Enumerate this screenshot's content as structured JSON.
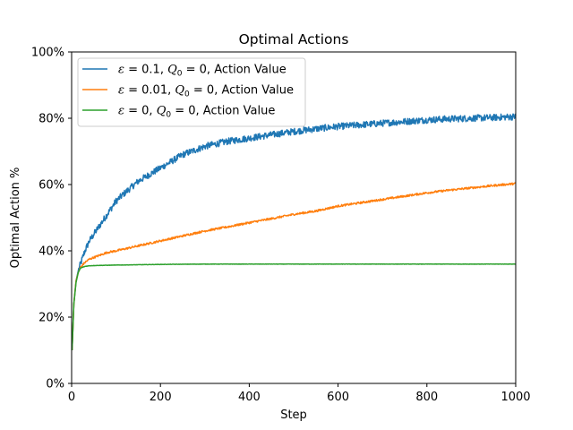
{
  "chart_data": {
    "type": "line",
    "title": "Optimal Actions",
    "xlabel": "Step",
    "ylabel": "Optimal Action %",
    "xlim": [
      0,
      1000
    ],
    "ylim": [
      0,
      100
    ],
    "x_ticks": [
      0,
      200,
      400,
      600,
      800,
      1000
    ],
    "y_ticks": [
      0,
      20,
      40,
      60,
      80,
      100
    ],
    "x_tick_labels": [
      "0",
      "200",
      "400",
      "600",
      "800",
      "1000"
    ],
    "y_tick_labels": [
      "0%",
      "20%",
      "40%",
      "60%",
      "80%",
      "100%"
    ],
    "grid": false,
    "legend_position": "top-left",
    "series": [
      {
        "name": "ε=0.1, Q0=0, Action Value",
        "name_parts": [
          "ε",
          " = 0.1, ",
          "Q",
          "0",
          " = 0, Action Value"
        ],
        "color": "#1f77b4",
        "noise": 1.0,
        "points": [
          [
            1,
            10
          ],
          [
            5,
            24
          ],
          [
            10,
            31
          ],
          [
            15,
            34
          ],
          [
            20,
            36
          ],
          [
            30,
            40
          ],
          [
            40,
            43
          ],
          [
            50,
            45
          ],
          [
            60,
            47
          ],
          [
            80,
            51
          ],
          [
            100,
            55
          ],
          [
            120,
            57.5
          ],
          [
            150,
            61
          ],
          [
            200,
            65
          ],
          [
            250,
            69
          ],
          [
            300,
            71.5
          ],
          [
            350,
            73
          ],
          [
            400,
            74
          ],
          [
            450,
            75
          ],
          [
            500,
            76
          ],
          [
            550,
            76.8
          ],
          [
            600,
            77.5
          ],
          [
            650,
            78
          ],
          [
            700,
            78.5
          ],
          [
            750,
            79
          ],
          [
            800,
            79.5
          ],
          [
            850,
            79.8
          ],
          [
            900,
            80
          ],
          [
            950,
            80.2
          ],
          [
            1000,
            80.5
          ]
        ]
      },
      {
        "name": "ε=0.01, Q0=0, Action Value",
        "name_parts": [
          "ε",
          " = 0.01, ",
          "Q",
          "0",
          " = 0, Action Value"
        ],
        "color": "#ff7f0e",
        "noise": 0.3,
        "points": [
          [
            1,
            10
          ],
          [
            5,
            24
          ],
          [
            10,
            31
          ],
          [
            15,
            33.5
          ],
          [
            20,
            35
          ],
          [
            30,
            36.5
          ],
          [
            40,
            37.5
          ],
          [
            60,
            38.5
          ],
          [
            80,
            39.5
          ],
          [
            100,
            40
          ],
          [
            150,
            41.5
          ],
          [
            200,
            43
          ],
          [
            250,
            44.5
          ],
          [
            300,
            46
          ],
          [
            350,
            47.2
          ],
          [
            400,
            48.5
          ],
          [
            450,
            49.7
          ],
          [
            500,
            51
          ],
          [
            550,
            52
          ],
          [
            600,
            53.5
          ],
          [
            650,
            54.5
          ],
          [
            700,
            55.5
          ],
          [
            750,
            56.5
          ],
          [
            800,
            57.5
          ],
          [
            850,
            58.3
          ],
          [
            900,
            59
          ],
          [
            950,
            59.7
          ],
          [
            1000,
            60.3
          ]
        ]
      },
      {
        "name": "ε=0, Q0=0, Action Value",
        "name_parts": [
          "ε",
          " = 0, ",
          "Q",
          "0",
          " = 0, Action Value"
        ],
        "color": "#2ca02c",
        "noise": 0.05,
        "points": [
          [
            1,
            10
          ],
          [
            5,
            24
          ],
          [
            10,
            30.5
          ],
          [
            15,
            33.5
          ],
          [
            20,
            34.8
          ],
          [
            30,
            35.3
          ],
          [
            40,
            35.5
          ],
          [
            60,
            35.6
          ],
          [
            100,
            35.7
          ],
          [
            150,
            35.8
          ],
          [
            200,
            35.9
          ],
          [
            300,
            36
          ],
          [
            1000,
            36
          ]
        ]
      }
    ]
  }
}
